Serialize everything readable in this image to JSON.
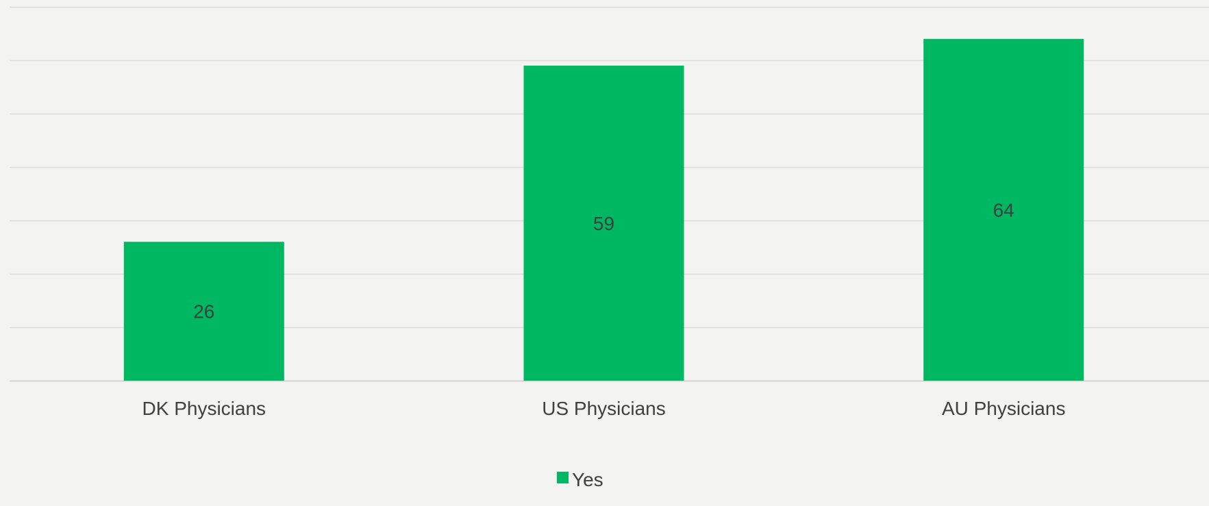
{
  "chart_data": {
    "type": "bar",
    "categories": [
      "DK Physicians",
      "US Physicians",
      "AU Physicians"
    ],
    "series": [
      {
        "name": "Yes",
        "values": [
          26,
          59,
          64
        ]
      }
    ],
    "ylim": [
      0,
      70
    ],
    "grid": true,
    "data_labels": true,
    "legend": "bottom-center",
    "colors": {
      "bar": "#00b862",
      "background": "#f3f3f1",
      "label_text": "#404040"
    }
  }
}
